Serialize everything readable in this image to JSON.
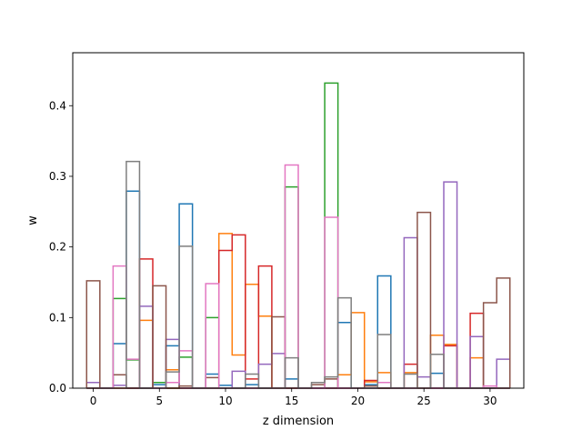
{
  "chart_data": {
    "type": "bar",
    "style": "step-outline",
    "xlabel": "z dimension",
    "ylabel": "w",
    "xlim": [
      -1.55,
      32.55
    ],
    "ylim": [
      0,
      0.475
    ],
    "x_ticks": [
      0,
      5,
      10,
      15,
      20,
      25,
      30
    ],
    "x_tick_labels": [
      "0",
      "5",
      "10",
      "15",
      "20",
      "25",
      "30"
    ],
    "y_ticks": [
      0.0,
      0.1,
      0.2,
      0.3,
      0.4
    ],
    "y_tick_labels": [
      "0.0",
      "0.1",
      "0.2",
      "0.3",
      "0.4"
    ],
    "bin_centers": [
      0,
      1,
      2,
      3,
      4,
      5,
      6,
      7,
      8,
      9,
      10,
      11,
      12,
      13,
      14,
      15,
      16,
      17,
      18,
      19,
      20,
      21,
      22,
      23,
      24,
      25,
      26,
      27,
      28,
      29,
      30,
      31
    ],
    "series": [
      {
        "color": "#1f77b4",
        "values": [
          0,
          0,
          0.063,
          0.279,
          0,
          0.005,
          0.06,
          0.261,
          0,
          0.02,
          0.004,
          0,
          0.005,
          0,
          0,
          0.013,
          0,
          0,
          0,
          0.093,
          0,
          0.005,
          0.159,
          0,
          0,
          0,
          0.021,
          0,
          0,
          0,
          0,
          0
        ]
      },
      {
        "color": "#ff7f0e",
        "values": [
          0,
          0,
          0,
          0,
          0.096,
          0,
          0.026,
          0,
          0,
          0,
          0.219,
          0.047,
          0.147,
          0.102,
          0,
          0,
          0,
          0,
          0,
          0.019,
          0.107,
          0.009,
          0.022,
          0,
          0.022,
          0,
          0.075,
          0.062,
          0,
          0.043,
          0,
          0
        ]
      },
      {
        "color": "#2ca02c",
        "values": [
          0,
          0,
          0.127,
          0.04,
          0,
          0.008,
          0,
          0.044,
          0,
          0.1,
          0,
          0,
          0,
          0,
          0,
          0.285,
          0,
          0,
          0.432,
          0,
          0,
          0,
          0,
          0,
          0,
          0,
          0,
          0,
          0,
          0,
          0,
          0
        ]
      },
      {
        "color": "#d62728",
        "values": [
          0,
          0,
          0,
          0,
          0.183,
          0,
          0,
          0,
          0,
          0,
          0.195,
          0.217,
          0.013,
          0.173,
          0,
          0,
          0,
          0,
          0,
          0,
          0,
          0.011,
          0,
          0,
          0.034,
          0,
          0,
          0.06,
          0,
          0.106,
          0,
          0
        ]
      },
      {
        "color": "#9467bd",
        "values": [
          0.008,
          0,
          0.004,
          0,
          0.116,
          0,
          0.069,
          0,
          0,
          0,
          0,
          0.024,
          0,
          0.034,
          0.049,
          0,
          0,
          0,
          0,
          0,
          0,
          0,
          0,
          0,
          0.213,
          0.016,
          0,
          0.292,
          0,
          0.073,
          0,
          0.041
        ]
      },
      {
        "color": "#8c564b",
        "values": [
          0.152,
          0,
          0.019,
          0,
          0,
          0.145,
          0,
          0.003,
          0,
          0.015,
          0,
          0,
          0,
          0,
          0.101,
          0,
          0,
          0.005,
          0.013,
          0,
          0,
          0.003,
          0,
          0,
          0,
          0.249,
          0,
          0,
          0,
          0,
          0.121,
          0.156
        ]
      },
      {
        "color": "#e377c2",
        "values": [
          0,
          0,
          0.173,
          0.041,
          0,
          0,
          0.008,
          0.053,
          0,
          0.148,
          0,
          0,
          0,
          0,
          0,
          0.316,
          0,
          0,
          0.242,
          0,
          0,
          0,
          0.008,
          0,
          0,
          0,
          0,
          0,
          0,
          0,
          0.003,
          0
        ]
      },
      {
        "color": "#7f7f7f",
        "values": [
          0,
          0,
          0,
          0.321,
          0,
          0,
          0.023,
          0.201,
          0,
          0,
          0,
          0,
          0.02,
          0,
          0,
          0.043,
          0,
          0.008,
          0.016,
          0.128,
          0,
          0,
          0.076,
          0,
          0.02,
          0,
          0.048,
          0,
          0,
          0,
          0,
          0
        ]
      }
    ]
  }
}
